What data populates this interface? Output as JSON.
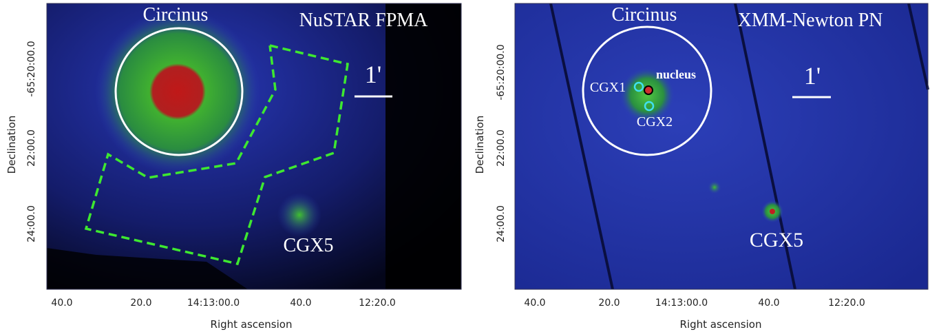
{
  "panels": [
    {
      "instrument": "NuSTAR FPMA",
      "target": "Circinus",
      "scale": "1'",
      "sources": [
        "CGX5"
      ],
      "xlabel": "Right ascension",
      "ylabel": "Declination",
      "xticks": [
        "40.0",
        "20.0",
        "14:13:00.0",
        "40.0",
        "12:20.0"
      ],
      "yticks": [
        "-65:20:00.0",
        "22:00.0",
        "24:00.0"
      ]
    },
    {
      "instrument": "XMM-Newton PN",
      "target": "Circinus",
      "scale": "1'",
      "sources": [
        "nucleus",
        "CGX1",
        "CGX2",
        "CGX5"
      ],
      "xlabel": "Right ascension",
      "ylabel": "Declination",
      "xticks": [
        "40.0",
        "20.0",
        "14:13:00.0",
        "40.0",
        "12:20.0"
      ],
      "yticks": [
        "-65:20:00.0",
        "22:00.0",
        "24:00.0"
      ]
    }
  ]
}
